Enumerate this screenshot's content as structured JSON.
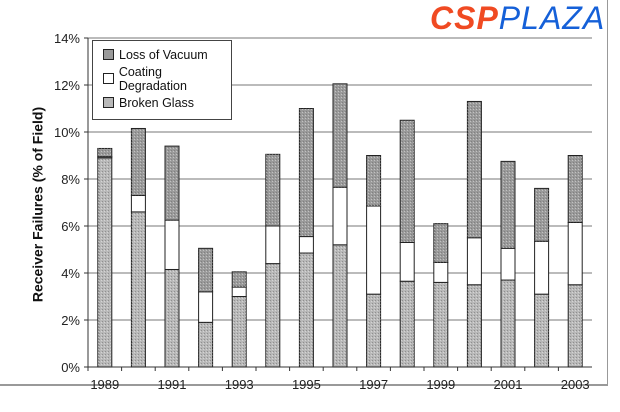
{
  "chart_data": {
    "type": "bar",
    "stacked": true,
    "title": "",
    "xlabel": "",
    "ylabel": "Receiver Failures (% of Field)",
    "ylim": [
      0,
      14
    ],
    "yticks": [
      "0%",
      "2%",
      "4%",
      "6%",
      "8%",
      "10%",
      "12%",
      "14%"
    ],
    "xtick_labels": [
      "1989",
      "1991",
      "1993",
      "1995",
      "1997",
      "1999",
      "2001",
      "2003"
    ],
    "categories": [
      "1989",
      "1990",
      "1991",
      "1992",
      "1993",
      "1994",
      "1995",
      "1996",
      "1997",
      "1998",
      "1999",
      "2000",
      "2001",
      "2002",
      "2003"
    ],
    "grid": true,
    "legend_position": "top-left",
    "series": [
      {
        "name": "Broken Glass",
        "color": "#b8b8b8",
        "values": [
          8.9,
          6.6,
          4.15,
          1.9,
          3.0,
          4.4,
          4.85,
          5.2,
          3.1,
          3.65,
          3.6,
          3.5,
          3.7,
          3.1,
          3.5
        ]
      },
      {
        "name": "Coating Degradation",
        "color": "#ffffff",
        "values": [
          0.05,
          0.7,
          2.1,
          1.3,
          0.4,
          1.6,
          0.7,
          2.45,
          3.75,
          1.65,
          0.85,
          2.0,
          1.35,
          2.25,
          2.65
        ]
      },
      {
        "name": "Loss of Vacuum",
        "color": "#9a9a9a",
        "values": [
          0.35,
          2.85,
          3.15,
          1.85,
          0.65,
          3.05,
          5.45,
          4.4,
          2.15,
          5.2,
          1.65,
          5.8,
          3.7,
          2.25,
          2.85
        ]
      }
    ],
    "legend_order": [
      "Loss of Vacuum",
      "Coating Degradation",
      "Broken Glass"
    ]
  },
  "watermark": {
    "part1": "CSP",
    "part2": "PLAZA"
  }
}
